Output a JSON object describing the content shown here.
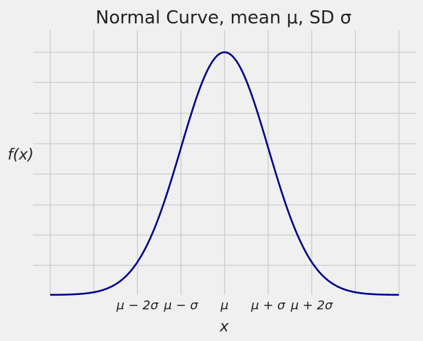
{
  "chart_data": {
    "type": "line",
    "title": "Normal Curve, mean μ, SD σ",
    "xlabel": "x",
    "ylabel": "f(x)",
    "xlim": [
      -4,
      4
    ],
    "ylim": [
      0,
      0.4
    ],
    "tick_labels": [
      {
        "x": -2,
        "label": "μ − 2σ"
      },
      {
        "x": -1,
        "label": "μ − σ"
      },
      {
        "x": 0,
        "label": "μ"
      },
      {
        "x": 1,
        "label": "μ + σ"
      },
      {
        "x": 2,
        "label": "μ + 2σ"
      }
    ],
    "grid": true,
    "series": [
      {
        "color": "#00008b",
        "function": "standard normal density",
        "mean": 0,
        "sd": 1
      }
    ]
  }
}
